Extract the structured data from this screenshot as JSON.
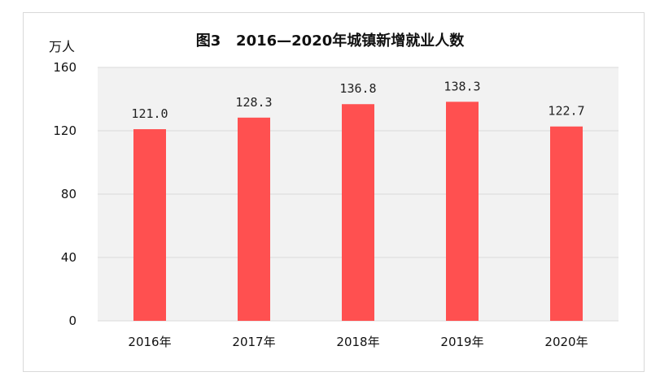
{
  "chart_data": {
    "type": "bar",
    "title": "图3   2016—2020年城镇新增就业人数",
    "ylabel": "万人",
    "xlabel": "",
    "categories": [
      "2016年",
      "2017年",
      "2018年",
      "2019年",
      "2020年"
    ],
    "values": [
      121.0,
      128.3,
      136.8,
      138.3,
      122.7
    ],
    "data_labels": [
      "121.0",
      "128.3",
      "136.8",
      "138.3",
      "122.7"
    ],
    "ylim": [
      0,
      160
    ],
    "yticks": [
      "0",
      "40",
      "80",
      "120",
      "160"
    ],
    "grid": true,
    "legend": "none",
    "colors": {
      "bar": "#ff5050",
      "plot_background": "#f2f2f2",
      "gridline": "#d9d9d9"
    }
  }
}
